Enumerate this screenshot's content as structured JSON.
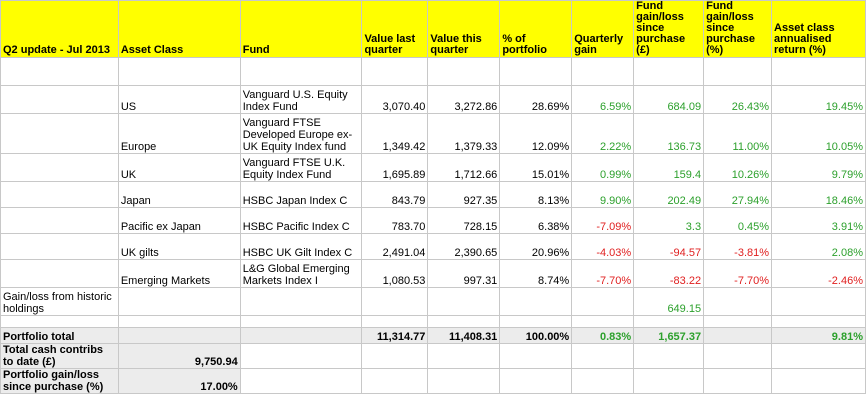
{
  "header": {
    "title": "Q2 update - Jul 2013",
    "asset_class": "Asset Class",
    "fund": "Fund",
    "value_last": "Value last quarter",
    "value_this": "Value this quarter",
    "pct_portfolio": "% of portfolio",
    "quarterly_gain": "Quarterly gain",
    "gain_loss_gbp": "Fund gain/loss since purchase (£)",
    "gain_loss_pct": "Fund gain/loss since purchase (%)",
    "annualised": "Asset class annualised return (%)"
  },
  "rows": [
    {
      "asset": "US",
      "fund": "Vanguard U.S. Equity Index Fund",
      "last": "3,070.40",
      "this": "3,272.86",
      "pct": "28.69%",
      "qgain": "6.59%",
      "gbp": "684.09",
      "gpct": "26.43%",
      "ann": "19.45%"
    },
    {
      "asset": "Europe",
      "fund": "Vanguard FTSE Developed Europe ex-UK Equity Index fund",
      "last": "1,349.42",
      "this": "1,379.33",
      "pct": "12.09%",
      "qgain": "2.22%",
      "gbp": "136.73",
      "gpct": "11.00%",
      "ann": "10.05%"
    },
    {
      "asset": "UK",
      "fund": "Vanguard FTSE U.K. Equity Index Fund",
      "last": "1,695.89",
      "this": "1,712.66",
      "pct": "15.01%",
      "qgain": "0.99%",
      "gbp": "159.4",
      "gpct": "10.26%",
      "ann": "9.79%"
    },
    {
      "asset": "Japan",
      "fund": "HSBC Japan Index C",
      "last": "843.79",
      "this": "927.35",
      "pct": "8.13%",
      "qgain": "9.90%",
      "gbp": "202.49",
      "gpct": "27.94%",
      "ann": "18.46%"
    },
    {
      "asset": "Pacific ex Japan",
      "fund": "HSBC Pacific Index C",
      "last": "783.70",
      "this": "728.15",
      "pct": "6.38%",
      "qgain": "-7.09%",
      "gbp": "3.3",
      "gpct": "0.45%",
      "ann": "3.91%"
    },
    {
      "asset": "UK gilts",
      "fund": "HSBC UK Gilt Index C",
      "last": "2,491.04",
      "this": "2,390.65",
      "pct": "20.96%",
      "qgain": "-4.03%",
      "gbp": "-94.57",
      "gpct": "-3.81%",
      "ann": "2.08%"
    },
    {
      "asset": "Emerging Markets",
      "fund": "L&G Global Emerging Markets Index I",
      "last": "1,080.53",
      "this": "997.31",
      "pct": "8.74%",
      "qgain": "-7.70%",
      "gbp": "-83.22",
      "gpct": "-7.70%",
      "ann": "-2.46%"
    }
  ],
  "historic": {
    "label": "Gain/loss from historic holdings",
    "gbp": "649.15"
  },
  "total": {
    "label": "Portfolio total",
    "last": "11,314.77",
    "this": "11,408.31",
    "pct": "100.00%",
    "qgain": "0.83%",
    "gbp": "1,657.37",
    "ann": "9.81%"
  },
  "cash": {
    "label": "Total cash contribs to date (£)",
    "value": "9,750.94"
  },
  "gain_since": {
    "label": "Portfolio gain/loss since purchase (%)",
    "value": "17.00%"
  },
  "colors": {
    "header_bg": "#ffff00",
    "positive": "#2ca02c",
    "negative": "#e02020",
    "total_bg": "#ececec"
  }
}
